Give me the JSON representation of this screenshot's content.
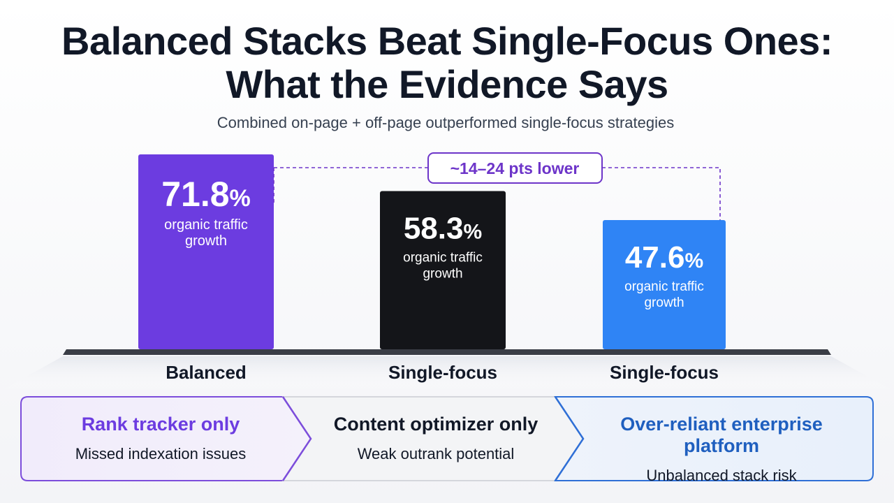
{
  "title_line1": "Balanced Stacks Beat Single-Focus Ones:",
  "title_line2": "What the Evidence Says",
  "subtitle": "Combined on-page + off-page outperformed single-focus strategies",
  "colors": {
    "balanced": "#6c3ce0",
    "single_dark": "#141519",
    "single_blue": "#2f84f5",
    "annotation": "#6d35c9",
    "panel1_title": "#6c3ce0",
    "panel2_title": "#111827",
    "panel3_title": "#1f5fbf"
  },
  "chart_data": {
    "type": "bar",
    "categories": [
      "Balanced",
      "Single-focus",
      "Single-focus"
    ],
    "values": [
      71.8,
      58.3,
      47.6
    ],
    "value_labels": [
      "71.8%",
      "58.3%",
      "47.6%"
    ],
    "value_caption_line1": "organic traffic",
    "value_caption_line2": "growth",
    "annotation": "~14–24 pts lower",
    "ylim": [
      0,
      100
    ],
    "grid": false
  },
  "panels": [
    {
      "title": "Rank tracker only",
      "subtitle": "Missed indexation issues"
    },
    {
      "title": "Content optimizer only",
      "subtitle": "Weak outrank potential"
    },
    {
      "title": "Over-reliant enterprise platform",
      "subtitle": "Unbalanced stack risk"
    }
  ]
}
